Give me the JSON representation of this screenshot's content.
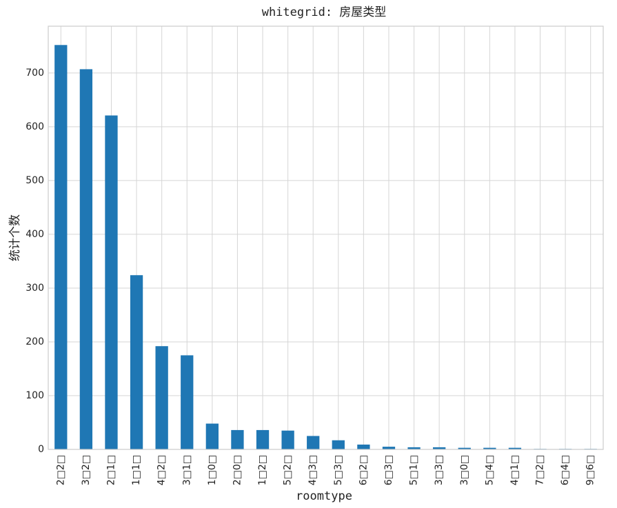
{
  "chart_data": {
    "type": "bar",
    "title": "whitegrid: 房屋类型",
    "x_label": "roomtype",
    "y_label": "统计个数",
    "categories": [
      "2□2□",
      "3□2□",
      "2□1□",
      "1□1□",
      "4□2□",
      "3□1□",
      "1□0□",
      "2□0□",
      "1□2□",
      "5□2□",
      "4□3□",
      "5□3□",
      "6□2□",
      "6□3□",
      "5□1□",
      "3□3□",
      "3□0□",
      "5□4□",
      "4□1□",
      "7□2□",
      "6□4□",
      "9□6□"
    ],
    "values": [
      752,
      707,
      621,
      324,
      192,
      175,
      48,
      36,
      36,
      35,
      25,
      17,
      9,
      5,
      4,
      4,
      3,
      3,
      3,
      1,
      1,
      1
    ],
    "color": "#1f77b4",
    "ylim": [
      0,
      787
    ],
    "yticks": [
      0,
      100,
      200,
      300,
      400,
      500,
      600,
      700
    ],
    "grid": true
  }
}
